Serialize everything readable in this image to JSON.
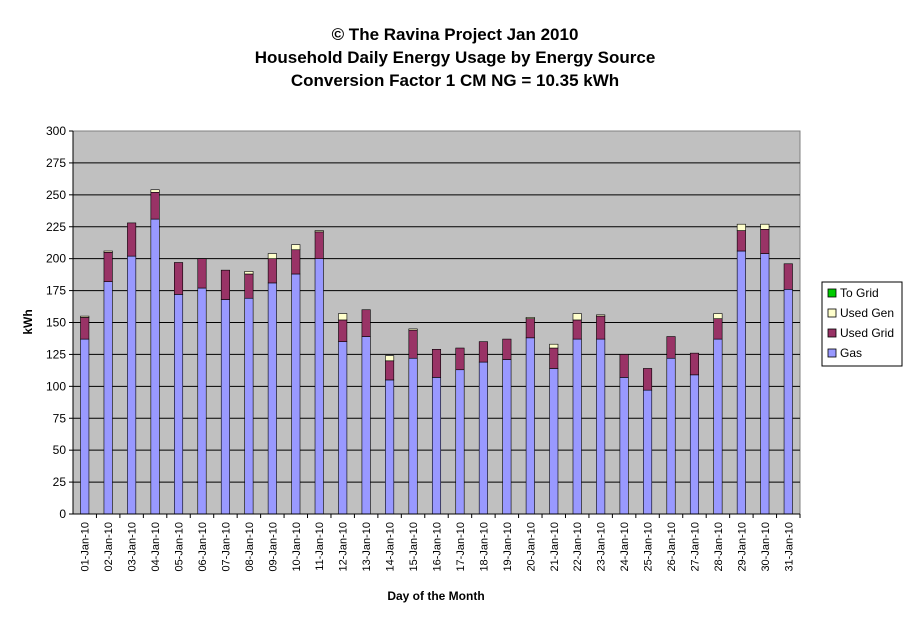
{
  "chart_data": {
    "type": "bar",
    "stacked": true,
    "title_lines": [
      "© The Ravina Project Jan 2010",
      "Household Daily Energy Usage by Energy Source",
      "Conversion Factor 1 CM NG = 10.35 kWh"
    ],
    "xlabel": "Day of the Month",
    "ylabel": "kWh",
    "ylim": [
      0,
      300
    ],
    "yticks": [
      0,
      25,
      50,
      75,
      100,
      125,
      150,
      175,
      200,
      225,
      250,
      275,
      300
    ],
    "grid": true,
    "legend_position": "right",
    "categories": [
      "01-Jan-10",
      "02-Jan-10",
      "03-Jan-10",
      "04-Jan-10",
      "05-Jan-10",
      "06-Jan-10",
      "07-Jan-10",
      "08-Jan-10",
      "09-Jan-10",
      "10-Jan-10",
      "11-Jan-10",
      "12-Jan-10",
      "13-Jan-10",
      "14-Jan-10",
      "15-Jan-10",
      "16-Jan-10",
      "17-Jan-10",
      "18-Jan-10",
      "19-Jan-10",
      "20-Jan-10",
      "21-Jan-10",
      "22-Jan-10",
      "23-Jan-10",
      "24-Jan-10",
      "25-Jan-10",
      "26-Jan-10",
      "27-Jan-10",
      "28-Jan-10",
      "29-Jan-10",
      "30-Jan-10",
      "31-Jan-10"
    ],
    "series": [
      {
        "name": "Gas",
        "color": "#9999ff",
        "values": [
          137,
          182,
          202,
          231,
          172,
          177,
          168,
          169,
          181,
          188,
          200,
          135,
          139,
          105,
          122,
          107,
          113,
          119,
          121,
          138,
          114,
          137,
          137,
          107,
          97,
          122,
          109,
          137,
          206,
          204,
          176
        ]
      },
      {
        "name": "Used Grid",
        "color": "#993366",
        "values": [
          17,
          23,
          26,
          21,
          25,
          23,
          23,
          19,
          19,
          19,
          21,
          17,
          21,
          15,
          22,
          22,
          17,
          16,
          16,
          15,
          16,
          15,
          18,
          18,
          17,
          17,
          17,
          16,
          16,
          19,
          20
        ]
      },
      {
        "name": "Used Gen",
        "color": "#ffffcc",
        "values": [
          1,
          1,
          0,
          2,
          0,
          0,
          0,
          2,
          4,
          4,
          1,
          5,
          0,
          4,
          1,
          0,
          0,
          0,
          0,
          1,
          3,
          5,
          1,
          0,
          0,
          0,
          0,
          4,
          5,
          4,
          0
        ]
      },
      {
        "name": "To Grid",
        "color": "#00cc00",
        "values": [
          0,
          0,
          0,
          0,
          0,
          0,
          0,
          0,
          0,
          0,
          0,
          0,
          0,
          0,
          0,
          0,
          0,
          0,
          0,
          0,
          0,
          0,
          0,
          0,
          0,
          0,
          0,
          0,
          0,
          0,
          0
        ]
      }
    ],
    "legend_order": [
      "To Grid",
      "Used Gen",
      "Used Grid",
      "Gas"
    ],
    "plot_background": "#c0c0c0"
  }
}
